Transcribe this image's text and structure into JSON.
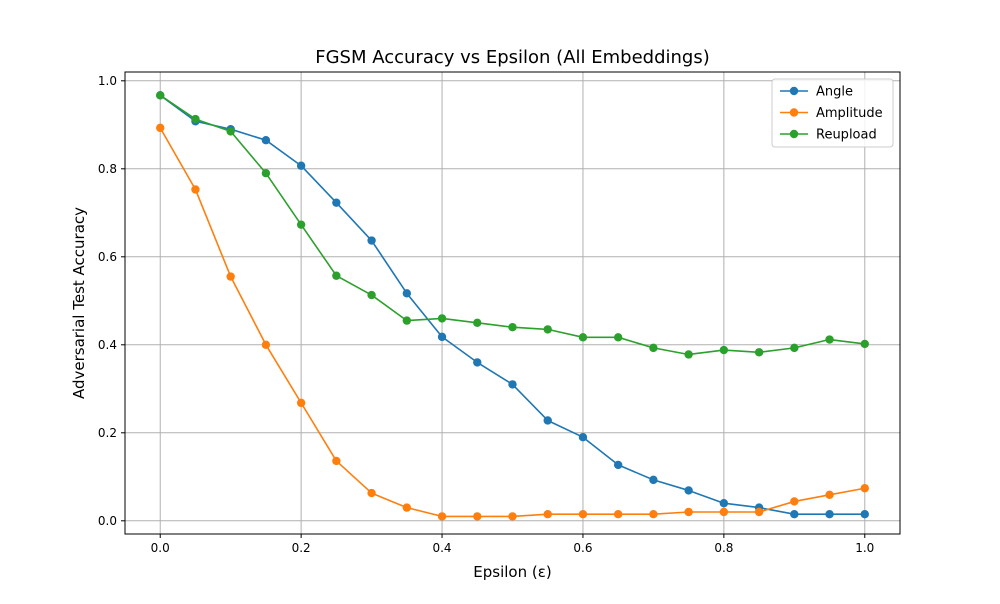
{
  "chart_data": {
    "type": "line",
    "title": "FGSM Accuracy vs Epsilon (All Embeddings)",
    "xlabel": "Epsilon (ε)",
    "ylabel": "Adversarial Test Accuracy",
    "xlim": [
      -0.05,
      1.05
    ],
    "ylim": [
      -0.03,
      1.02
    ],
    "x_ticks": [
      0.0,
      0.2,
      0.4,
      0.6,
      0.8,
      1.0
    ],
    "x_tick_labels": [
      "0.0",
      "0.2",
      "0.4",
      "0.6",
      "0.8",
      "1.0"
    ],
    "y_ticks": [
      0.0,
      0.2,
      0.4,
      0.6,
      0.8,
      1.0
    ],
    "y_tick_labels": [
      "0.0",
      "0.2",
      "0.4",
      "0.6",
      "0.8",
      "1.0"
    ],
    "grid": true,
    "legend_position": "top-right",
    "x": [
      0.0,
      0.05,
      0.1,
      0.15,
      0.2,
      0.25,
      0.3,
      0.35,
      0.4,
      0.45,
      0.5,
      0.55,
      0.6,
      0.65,
      0.7,
      0.75,
      0.8,
      0.85,
      0.9,
      0.95,
      1.0
    ],
    "series": [
      {
        "name": "Angle",
        "color": "#1f77b4",
        "values": [
          0.967,
          0.908,
          0.89,
          0.865,
          0.807,
          0.723,
          0.637,
          0.517,
          0.418,
          0.36,
          0.31,
          0.228,
          0.19,
          0.127,
          0.093,
          0.069,
          0.04,
          0.03,
          0.015,
          0.015,
          0.015
        ]
      },
      {
        "name": "Amplitude",
        "color": "#ff7f0e",
        "values": [
          0.893,
          0.753,
          0.555,
          0.4,
          0.268,
          0.136,
          0.063,
          0.03,
          0.01,
          0.01,
          0.01,
          0.015,
          0.015,
          0.015,
          0.015,
          0.02,
          0.02,
          0.02,
          0.044,
          0.059,
          0.074
        ]
      },
      {
        "name": "Reupload",
        "color": "#2ca02c",
        "values": [
          0.967,
          0.913,
          0.885,
          0.79,
          0.673,
          0.557,
          0.513,
          0.455,
          0.46,
          0.45,
          0.44,
          0.435,
          0.417,
          0.417,
          0.393,
          0.378,
          0.388,
          0.383,
          0.393,
          0.412,
          0.402
        ]
      }
    ]
  }
}
